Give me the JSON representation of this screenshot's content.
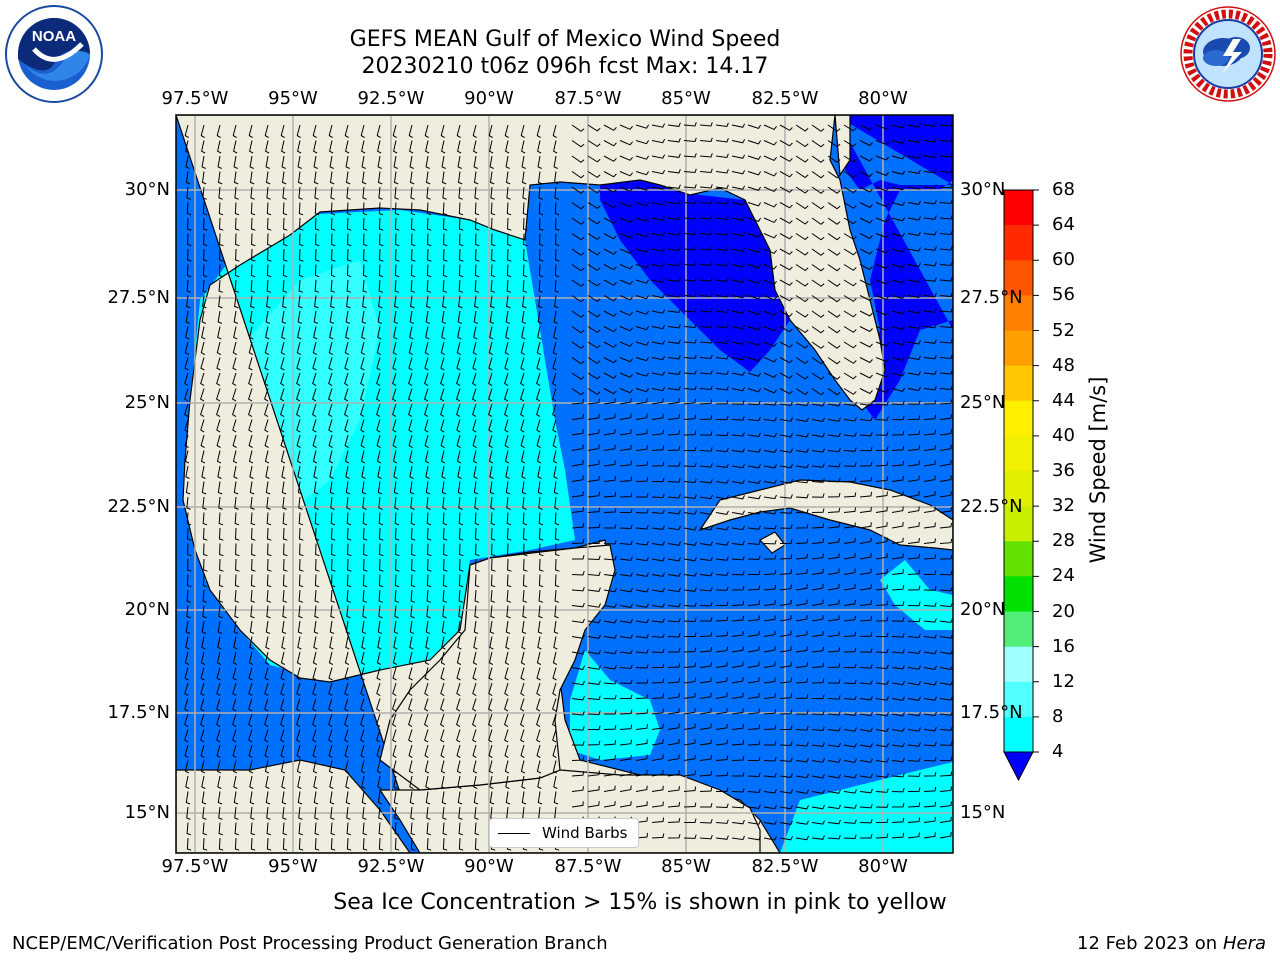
{
  "title_line1": "GEFS MEAN Gulf of Mexico Wind Speed",
  "title_line2": "20230210 t06z 096h fcst   Max: 14.17",
  "lon_ticks": [
    "97.5°W",
    "95°W",
    "92.5°W",
    "90°W",
    "87.5°W",
    "85°W",
    "82.5°W",
    "80°W"
  ],
  "lat_ticks": [
    "30°N",
    "27.5°N",
    "25°N",
    "22.5°N",
    "20°N",
    "17.5°N",
    "15°N"
  ],
  "colorbar": {
    "label": "Wind Speed [m/s]",
    "ticks": [
      "68",
      "64",
      "60",
      "56",
      "52",
      "48",
      "44",
      "40",
      "36",
      "32",
      "28",
      "24",
      "20",
      "16",
      "12",
      "8",
      "4"
    ],
    "colors": [
      "#ff0000",
      "#ff2a00",
      "#ff5500",
      "#ff7f00",
      "#ffa000",
      "#ffc800",
      "#fff000",
      "#f0f000",
      "#e0ef00",
      "#c8ef00",
      "#64e000",
      "#00e000",
      "#50ee78",
      "#a0ffff",
      "#50ffff",
      "#00ffff",
      "#0070ff"
    ],
    "extend_color": "#0000ff"
  },
  "legend": {
    "label": "Wind Barbs"
  },
  "subtitle": "Sea Ice Concentration > 15% is shown in pink to yellow",
  "footer_left": "NCEP/EMC/Verification Post Processing Product Generation Branch",
  "footer_date": "12 Feb 2023 on",
  "footer_host": "Hera",
  "logos": {
    "left": {
      "text": "NOAA",
      "ring_text": "NATIONAL OCEANIC AND ATMOSPHERIC ADMINISTRATION · U.S. DEPARTMENT OF COMMERCE"
    },
    "right": {
      "ring_text": "NATIONAL WEATHER SERVICE"
    }
  },
  "colors": {
    "land": "#efedde",
    "cyan": "#00ffff",
    "mid_blue": "#0070ff",
    "deep_blue": "#0000ff",
    "grid": "#b0b0b0"
  }
}
